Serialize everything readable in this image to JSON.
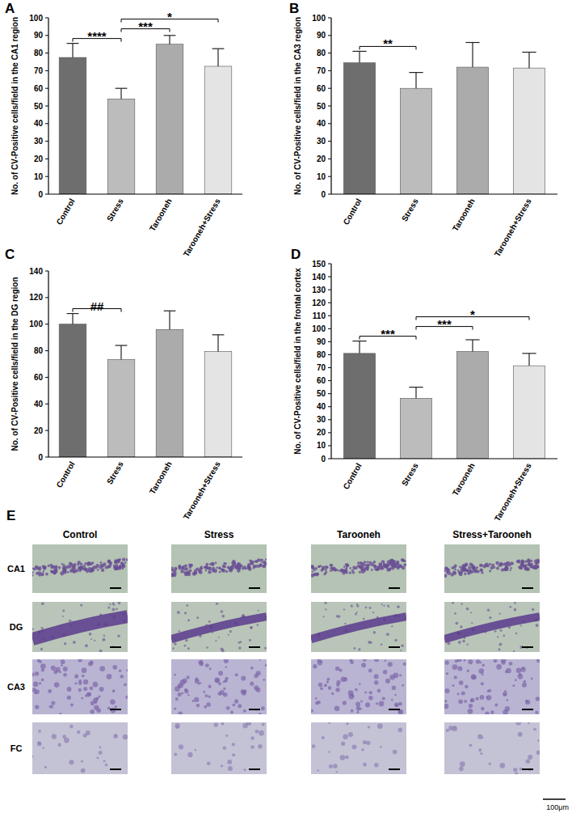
{
  "chart_data": [
    {
      "type": "bar",
      "panel_label": "A",
      "y_label": "No. of CV-Positive cells/field in the CA1 region",
      "categories": [
        "Control",
        "Stress",
        "Tarooneh",
        "Tarooneh+Stress"
      ],
      "values": [
        77.5,
        54,
        85,
        72.5
      ],
      "errors": [
        8,
        6,
        5,
        10
      ],
      "colors": [
        "#6e6e6e",
        "#bcbcbc",
        "#ababab",
        "#e4e4e4"
      ],
      "ylim": [
        0,
        100
      ],
      "yticks": [
        0,
        10,
        20,
        30,
        40,
        50,
        60,
        70,
        80,
        90,
        100
      ],
      "grid": false,
      "annotations": [
        {
          "text": "****",
          "from": "Control",
          "to": "Stress"
        },
        {
          "text": "***",
          "from": "Stress",
          "to": "Tarooneh"
        },
        {
          "text": "*",
          "from": "Stress",
          "to": "Tarooneh+Stress"
        }
      ]
    },
    {
      "type": "bar",
      "panel_label": "B",
      "y_label": "No. of CV-Positive cells/field in the CA3 region",
      "categories": [
        "Control",
        "Stress",
        "Tarooneh",
        "Tarooneh+Stress"
      ],
      "values": [
        74.5,
        60,
        72,
        71.5
      ],
      "errors": [
        6.5,
        9,
        14,
        9
      ],
      "colors": [
        "#6e6e6e",
        "#bcbcbc",
        "#ababab",
        "#e4e4e4"
      ],
      "ylim": [
        0,
        100
      ],
      "yticks": [
        0,
        10,
        20,
        30,
        40,
        50,
        60,
        70,
        80,
        90,
        100
      ],
      "grid": false,
      "annotations": [
        {
          "text": "**",
          "from": "Control",
          "to": "Stress"
        }
      ]
    },
    {
      "type": "bar",
      "panel_label": "C",
      "y_label": "No. of CV-Positive cells/field in the DG region",
      "categories": [
        "Control",
        "Stress",
        "Tarooneh",
        "Tarooneh+Stress"
      ],
      "values": [
        100,
        73.5,
        96,
        79.5
      ],
      "errors": [
        8,
        10.5,
        14,
        12.5
      ],
      "colors": [
        "#6e6e6e",
        "#bcbcbc",
        "#ababab",
        "#e4e4e4"
      ],
      "ylim": [
        0,
        140
      ],
      "yticks": [
        0,
        20,
        40,
        60,
        80,
        100,
        120,
        140
      ],
      "grid": false,
      "annotations": [
        {
          "text": "##",
          "from": "Control",
          "to": "Stress"
        }
      ]
    },
    {
      "type": "bar",
      "panel_label": "D",
      "y_label": "No. of CV-Positive cells/field in the frontal cortex",
      "categories": [
        "Control",
        "Stress",
        "Tarooneh",
        "Tarooneh+Stress"
      ],
      "values": [
        81,
        46.5,
        82.5,
        71.5
      ],
      "errors": [
        9.5,
        8.5,
        9,
        9.5
      ],
      "colors": [
        "#6e6e6e",
        "#bcbcbc",
        "#ababab",
        "#e4e4e4"
      ],
      "ylim": [
        0,
        150
      ],
      "yticks": [
        0,
        10,
        20,
        30,
        40,
        50,
        60,
        70,
        80,
        90,
        100,
        110,
        120,
        130,
        140,
        150
      ],
      "grid": false,
      "annotations": [
        {
          "text": "***",
          "from": "Control",
          "to": "Stress"
        },
        {
          "text": "***",
          "from": "Stress",
          "to": "Tarooneh"
        },
        {
          "text": "*",
          "from": "Stress",
          "to": "Tarooneh+Stress"
        }
      ]
    }
  ],
  "micrograph_panel": {
    "panel_label": "E",
    "columns": [
      "Control",
      "Stress",
      "Tarooneh",
      "Stress+Tarooneh"
    ],
    "rows": [
      "CA1",
      "DG",
      "CA3",
      "FC"
    ],
    "scale_bar": "100μm"
  }
}
